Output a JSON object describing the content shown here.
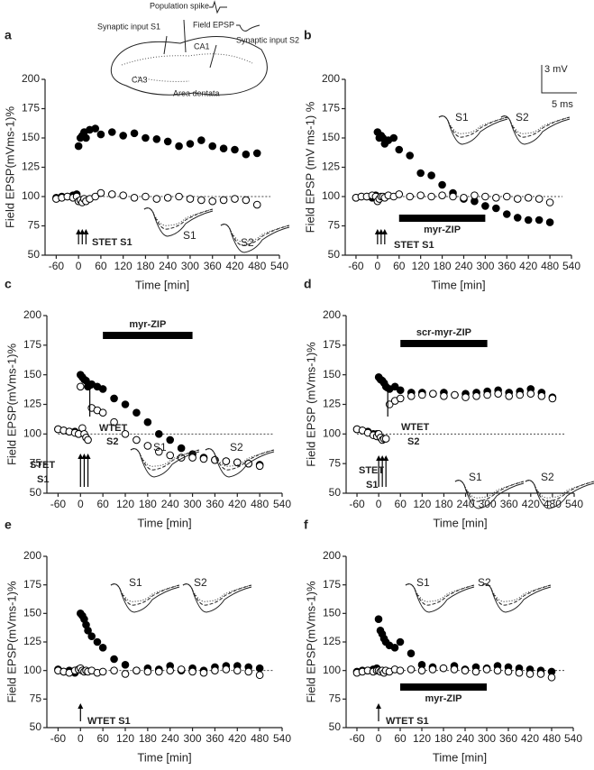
{
  "chart_data": [
    {
      "type": "scatter",
      "panel_label": "a",
      "xlabel": "Time [min]",
      "ylabel": "Field EPSP(mVms-1)%",
      "x": [
        -60,
        -45,
        -30,
        -15,
        -5,
        0,
        5,
        10,
        15,
        20,
        30,
        45,
        60,
        90,
        120,
        150,
        180,
        210,
        240,
        270,
        300,
        330,
        360,
        390,
        420,
        450,
        480
      ],
      "series": [
        {
          "color": "#000000",
          "fill": "#000000",
          "values": [
            99,
            100,
            100,
            101,
            102,
            143,
            150,
            152,
            155,
            150,
            157,
            158,
            153,
            155,
            152,
            154,
            150,
            149,
            147,
            143,
            145,
            148,
            143,
            141,
            140,
            136,
            137
          ]
        },
        {
          "color": "#000000",
          "fill": "#ffffff",
          "values": [
            98,
            99,
            100,
            99,
            100,
            96,
            97,
            95,
            98,
            96,
            98,
            100,
            103,
            102,
            101,
            99,
            100,
            98,
            99,
            100,
            98,
            97,
            96,
            97,
            98,
            97,
            93
          ]
        }
      ],
      "xlim": [
        -90,
        540
      ],
      "xticks": [
        -60,
        0,
        60,
        120,
        180,
        240,
        300,
        360,
        420,
        480,
        540
      ],
      "ylim": [
        50,
        200
      ],
      "yticks": [
        50,
        75,
        100,
        125,
        150,
        175,
        200
      ],
      "reference_line": 100,
      "stimuli": [
        {
          "times": [
            0,
            10,
            20
          ],
          "label": [
            "STET S1"
          ]
        }
      ],
      "inset_labels": [
        "S1",
        "S2"
      ],
      "diagram_labels": [
        "Population spike",
        "Synaptic input S1",
        "Field EPSP",
        "CA1",
        "Synaptic input S2",
        "CA3",
        "Area dentata"
      ]
    },
    {
      "type": "scatter",
      "panel_label": "b",
      "xlabel": "Time [min]",
      "ylabel": "Field EPSP (mV ms-1) %",
      "x": [
        -60,
        -45,
        -30,
        -15,
        -5,
        0,
        5,
        10,
        15,
        20,
        30,
        45,
        60,
        90,
        120,
        150,
        180,
        210,
        240,
        270,
        300,
        330,
        360,
        390,
        420,
        450,
        480
      ],
      "series": [
        {
          "color": "#000000",
          "fill": "#000000",
          "values": [
            99,
            100,
            100,
            99,
            101,
            155,
            150,
            152,
            150,
            145,
            148,
            150,
            140,
            135,
            120,
            118,
            110,
            103,
            98,
            96,
            92,
            90,
            85,
            82,
            80,
            80,
            78
          ]
        },
        {
          "color": "#000000",
          "fill": "#ffffff",
          "values": [
            99,
            100,
            100,
            101,
            100,
            96,
            98,
            100,
            100,
            99,
            101,
            100,
            102,
            100,
            101,
            100,
            101,
            100,
            99,
            101,
            100,
            99,
            100,
            98,
            99,
            98,
            95
          ]
        }
      ],
      "xlim": [
        -90,
        540
      ],
      "xticks": [
        -60,
        0,
        60,
        120,
        180,
        240,
        300,
        360,
        420,
        480,
        540
      ],
      "ylim": [
        50,
        200
      ],
      "yticks": [
        50,
        75,
        100,
        125,
        150,
        175,
        200
      ],
      "reference_line": 100,
      "stimuli": [
        {
          "times": [
            0,
            10,
            20
          ],
          "label": [
            "STET S1"
          ]
        }
      ],
      "drug_bar": {
        "label": "myr-ZIP",
        "start": 60,
        "end": 300
      },
      "inset_labels": [
        "S1",
        "S2"
      ],
      "scale_labels": [
        "3 mV",
        "5 ms"
      ]
    },
    {
      "type": "scatter",
      "panel_label": "c",
      "xlabel": "Time [min]",
      "ylabel": "Field EPSP(mVms-1)%",
      "x": [
        -60,
        -45,
        -30,
        -15,
        -5,
        0,
        5,
        10,
        15,
        20,
        30,
        45,
        60,
        90,
        120,
        150,
        180,
        210,
        240,
        270,
        300,
        330,
        360,
        390,
        420,
        450,
        480
      ],
      "series": [
        {
          "color": "#000000",
          "fill": "#000000",
          "values": [
            104,
            103,
            102,
            102,
            100,
            150,
            148,
            146,
            145,
            140,
            142,
            140,
            138,
            130,
            125,
            118,
            110,
            100,
            95,
            88,
            83,
            80,
            78,
            77,
            76,
            75,
            74
          ]
        },
        {
          "color": "#000000",
          "fill": "#ffffff",
          "values": [
            104,
            103,
            102,
            101,
            100,
            140,
            105,
            100,
            97,
            95,
            122,
            120,
            118,
            110,
            100,
            95,
            90,
            85,
            82,
            80,
            80,
            79,
            78,
            77,
            76,
            75,
            73
          ]
        }
      ],
      "xlim": [
        -90,
        540
      ],
      "xticks": [
        -60,
        0,
        60,
        120,
        180,
        240,
        300,
        360,
        420,
        480,
        540
      ],
      "ylim": [
        50,
        200
      ],
      "yticks": [
        50,
        75,
        100,
        125,
        150,
        175,
        200
      ],
      "reference_line": 100,
      "stimuli": [
        {
          "times": [
            0,
            10,
            20
          ],
          "label": [
            "STET",
            "S1"
          ]
        },
        {
          "times": [
            25
          ],
          "label": [
            "WTET",
            "S2"
          ]
        }
      ],
      "drug_bar": {
        "label": "myr-ZIP",
        "start": 60,
        "end": 300
      },
      "inset_labels": [
        "S1",
        "S2"
      ]
    },
    {
      "type": "scatter",
      "panel_label": "d",
      "xlabel": "Time [min]",
      "ylabel": "Field EPSP (mVms-1)%",
      "x": [
        -60,
        -45,
        -30,
        -15,
        -5,
        0,
        5,
        10,
        15,
        20,
        30,
        45,
        60,
        90,
        120,
        150,
        180,
        210,
        240,
        270,
        300,
        330,
        360,
        390,
        420,
        450,
        480
      ],
      "series": [
        {
          "color": "#000000",
          "fill": "#000000",
          "values": [
            104,
            103,
            102,
            100,
            100,
            148,
            146,
            145,
            143,
            140,
            138,
            140,
            137,
            135,
            135,
            134,
            135,
            133,
            134,
            135,
            136,
            137,
            135,
            136,
            138,
            135,
            131
          ]
        },
        {
          "color": "#000000",
          "fill": "#ffffff",
          "values": [
            104,
            103,
            101,
            99,
            98,
            100,
            97,
            95,
            96,
            96,
            125,
            128,
            130,
            132,
            133,
            134,
            132,
            133,
            131,
            132,
            133,
            134,
            132,
            133,
            134,
            132,
            130
          ]
        }
      ],
      "xlim": [
        -90,
        540
      ],
      "xticks": [
        -60,
        0,
        60,
        120,
        180,
        240,
        300,
        360,
        420,
        480,
        540
      ],
      "ylim": [
        50,
        200
      ],
      "yticks": [
        50,
        75,
        100,
        125,
        150,
        175,
        200
      ],
      "reference_line": 100,
      "stimuli": [
        {
          "times": [
            0,
            10,
            20
          ],
          "label": [
            "STET",
            "S1"
          ]
        },
        {
          "times": [
            25
          ],
          "label": [
            "WTET",
            "S2"
          ]
        }
      ],
      "drug_bar": {
        "label": "scr-myr-ZIP",
        "start": 60,
        "end": 300
      },
      "inset_labels": [
        "S1",
        "S2"
      ]
    },
    {
      "type": "scatter",
      "panel_label": "e",
      "xlabel": "Time [min]",
      "ylabel": "Field EPSP(mVms-1)%",
      "x": [
        -60,
        -45,
        -30,
        -15,
        -5,
        0,
        5,
        10,
        15,
        20,
        30,
        45,
        60,
        90,
        120,
        150,
        180,
        210,
        240,
        270,
        300,
        330,
        360,
        390,
        420,
        450,
        480
      ],
      "series": [
        {
          "color": "#000000",
          "fill": "#000000",
          "values": [
            101,
            99,
            100,
            98,
            101,
            150,
            148,
            145,
            140,
            135,
            130,
            125,
            120,
            110,
            105,
            100,
            102,
            101,
            104,
            100,
            102,
            100,
            103,
            104,
            104,
            103,
            102
          ]
        },
        {
          "color": "#000000",
          "fill": "#ffffff",
          "values": [
            100,
            99,
            98,
            100,
            101,
            102,
            100,
            99,
            100,
            99,
            100,
            98,
            99,
            100,
            97,
            100,
            99,
            99,
            100,
            101,
            99,
            98,
            100,
            101,
            100,
            99,
            96
          ]
        }
      ],
      "xlim": [
        -90,
        540
      ],
      "xticks": [
        -60,
        0,
        60,
        120,
        180,
        240,
        300,
        360,
        420,
        480,
        540
      ],
      "ylim": [
        50,
        200
      ],
      "yticks": [
        50,
        75,
        100,
        125,
        150,
        175,
        200
      ],
      "reference_line": 100,
      "stimuli": [
        {
          "times": [
            0
          ],
          "label": [
            "WTET  S1"
          ]
        }
      ],
      "inset_labels": [
        "S1",
        "S2"
      ]
    },
    {
      "type": "scatter",
      "panel_label": "f",
      "xlabel": "Time [min]",
      "ylabel": "Field EPSP(mVms-1)%",
      "x": [
        -60,
        -45,
        -30,
        -15,
        -5,
        0,
        5,
        10,
        15,
        20,
        30,
        45,
        60,
        90,
        120,
        150,
        180,
        210,
        240,
        270,
        300,
        330,
        360,
        390,
        420,
        450,
        480
      ],
      "series": [
        {
          "color": "#000000",
          "fill": "#000000",
          "values": [
            99,
            100,
            100,
            101,
            102,
            145,
            135,
            132,
            128,
            125,
            122,
            120,
            125,
            115,
            105,
            103,
            102,
            104,
            101,
            103,
            102,
            104,
            103,
            102,
            101,
            100,
            99
          ]
        },
        {
          "color": "#000000",
          "fill": "#ffffff",
          "values": [
            98,
            99,
            100,
            99,
            100,
            100,
            99,
            100,
            98,
            100,
            99,
            101,
            100,
            101,
            100,
            101,
            102,
            101,
            100,
            99,
            101,
            100,
            99,
            98,
            97,
            97,
            94
          ]
        }
      ],
      "xlim": [
        -90,
        540
      ],
      "xticks": [
        -60,
        0,
        60,
        120,
        180,
        240,
        300,
        360,
        420,
        480,
        540
      ],
      "ylim": [
        50,
        200
      ],
      "yticks": [
        50,
        75,
        100,
        125,
        150,
        175,
        200
      ],
      "reference_line": 100,
      "stimuli": [
        {
          "times": [
            0
          ],
          "label": [
            "WTET  S1"
          ]
        }
      ],
      "drug_bar": {
        "label": "myr-ZIP",
        "start": 60,
        "end": 300
      },
      "inset_labels": [
        "S1",
        "S2"
      ]
    }
  ]
}
